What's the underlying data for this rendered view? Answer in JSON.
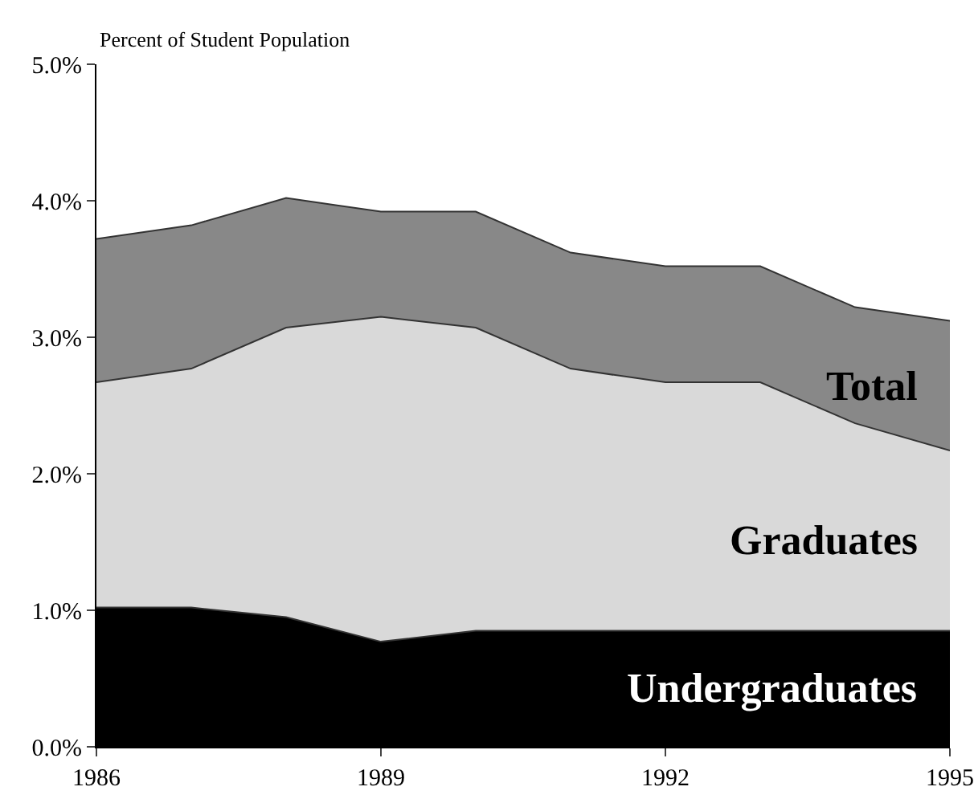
{
  "chart_data": {
    "type": "area",
    "ylabel": "Percent of Student Population",
    "x": [
      1986,
      1987,
      1988,
      1989,
      1990,
      1991,
      1992,
      1993,
      1994,
      1995
    ],
    "series": [
      {
        "name": "Total",
        "color": "#888888",
        "values": [
          3.72,
          3.82,
          4.02,
          3.92,
          3.92,
          3.62,
          3.52,
          3.52,
          3.22,
          3.12
        ]
      },
      {
        "name": "Graduates",
        "color": "#d9d9d9",
        "values": [
          2.67,
          2.77,
          3.07,
          3.15,
          3.07,
          2.77,
          2.67,
          2.67,
          2.37,
          2.17
        ]
      },
      {
        "name": "Undergraduates",
        "color": "#000000",
        "values": [
          1.02,
          1.02,
          0.95,
          0.77,
          0.85,
          0.85,
          0.85,
          0.85,
          0.85,
          0.85
        ]
      }
    ],
    "xlim": [
      1986,
      1995
    ],
    "xticks": [
      1986,
      1989,
      1992,
      1995
    ],
    "ylim": [
      0,
      5
    ],
    "yticks": [
      {
        "value": 0,
        "label": "0.0%"
      },
      {
        "value": 1,
        "label": "1.0%"
      },
      {
        "value": 2,
        "label": "2.0%"
      },
      {
        "value": 3,
        "label": "3.0%"
      },
      {
        "value": 4,
        "label": "4.0%"
      },
      {
        "value": 5,
        "label": "5.0%"
      }
    ],
    "grid": false,
    "legend": false
  }
}
